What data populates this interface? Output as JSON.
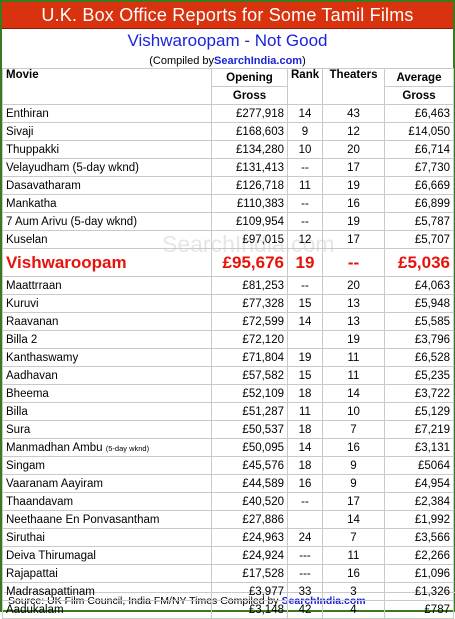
{
  "banner": {
    "title": "U.K. Box Office Reports for Some Tamil Films"
  },
  "subtitle": "Vishwaroopam - Not Good",
  "compiled": {
    "prefix": "(Compiled by ",
    "site": "SearchIndia.com",
    "suffix": ")"
  },
  "watermark": "SearchIndia.com",
  "table": {
    "headers": {
      "movie": "Movie",
      "gross_1": "Opening",
      "gross_2": "Gross",
      "rank": "Rank",
      "theaters": "Theaters",
      "avg_1": "Average",
      "avg_2": "Gross"
    },
    "rows": [
      {
        "movie": "Enthiran",
        "gross": "£277,918",
        "rank": "14",
        "theaters": "43",
        "avg": "£6,463"
      },
      {
        "movie": "Sivaji",
        "gross": "£168,603",
        "rank": "9",
        "theaters": "12",
        "avg": "£14,050"
      },
      {
        "movie": "Thuppakki",
        "gross": "£134,280",
        "rank": "10",
        "theaters": "20",
        "avg": "£6,714"
      },
      {
        "movie": "Velayudham (5-day wknd)",
        "gross": "£131,413",
        "rank": "--",
        "theaters": "17",
        "avg": "£7,730"
      },
      {
        "movie": "Dasavatharam",
        "gross": "£126,718",
        "rank": "11",
        "theaters": "19",
        "avg": "£6,669"
      },
      {
        "movie": "Mankatha",
        "gross": "£110,383",
        "rank": "--",
        "theaters": "16",
        "avg": "£6,899"
      },
      {
        "movie": "7 Aum Arivu (5-day wknd)",
        "gross": "£109,954",
        "rank": "--",
        "theaters": "19",
        "avg": "£5,787"
      },
      {
        "movie": "Kuselan",
        "gross": "£97,015",
        "rank": "12",
        "theaters": "17",
        "avg": "£5,707"
      },
      {
        "movie": "Vishwaroopam",
        "gross": "£95,676",
        "rank": "19",
        "theaters": "--",
        "avg": "£5,036",
        "highlight": true
      },
      {
        "movie": "Maattrraan",
        "gross": "£81,253",
        "rank": "--",
        "theaters": "20",
        "avg": "£4,063"
      },
      {
        "movie": "Kuruvi",
        "gross": "£77,328",
        "rank": "15",
        "theaters": "13",
        "avg": "£5,948"
      },
      {
        "movie": "Raavanan",
        "gross": "£72,599",
        "rank": "14",
        "theaters": "13",
        "avg": "£5,585"
      },
      {
        "movie": "Billa 2",
        "gross": "£72,120",
        "rank": "",
        "theaters": "19",
        "avg": "£3,796"
      },
      {
        "movie": "Kanthaswamy",
        "gross": "£71,804",
        "rank": "19",
        "theaters": "11",
        "avg": "£6,528"
      },
      {
        "movie": "Aadhavan",
        "gross": "£57,582",
        "rank": "15",
        "theaters": "11",
        "avg": "£5,235"
      },
      {
        "movie": "Bheema",
        "gross": "£52,109",
        "rank": "18",
        "theaters": "14",
        "avg": "£3,722"
      },
      {
        "movie": "Billa",
        "gross": "£51,287",
        "rank": "11",
        "theaters": "10",
        "avg": "£5,129"
      },
      {
        "movie": "Sura",
        "gross": "£50,537",
        "rank": "18",
        "theaters": "7",
        "avg": "£7,219"
      },
      {
        "movie": "Manmadhan Ambu",
        "note": "(5-day wknd)",
        "gross": "£50,095",
        "rank": "14",
        "theaters": "16",
        "avg": "£3,131"
      },
      {
        "movie": "Singam",
        "gross": "£45,576",
        "rank": "18",
        "theaters": "9",
        "avg": "£5064"
      },
      {
        "movie": "Vaaranam Aayiram",
        "gross": "£44,589",
        "rank": "16",
        "theaters": "9",
        "avg": "£4,954"
      },
      {
        "movie": "Thaandavam",
        "gross": "£40,520",
        "rank": "--",
        "theaters": "17",
        "avg": "£2,384"
      },
      {
        "movie": "Neethaane En Ponvasantham",
        "gross": "£27,886",
        "rank": "",
        "theaters": "14",
        "avg": "£1,992"
      },
      {
        "movie": "Siruthai",
        "gross": "£24,963",
        "rank": "24",
        "theaters": "7",
        "avg": "£3,566"
      },
      {
        "movie": "Deiva Thirumagal",
        "gross": "£24,924",
        "rank": "---",
        "theaters": "11",
        "avg": "£2,266"
      },
      {
        "movie": "Rajapattai",
        "gross": "£17,528",
        "rank": "---",
        "theaters": "16",
        "avg": "£1,096"
      },
      {
        "movie": "Madrasapattinam",
        "gross": "£3,977",
        "rank": "33",
        "theaters": "3",
        "avg": "£1,326"
      },
      {
        "movie": "Aadukalam",
        "gross": "£3,148",
        "rank": "42",
        "theaters": "4",
        "avg": "£787"
      }
    ]
  },
  "footer": {
    "text": "Source: UK Film Council, India FM/NY Times Compiled by",
    "site": "SearchIndia.com"
  }
}
